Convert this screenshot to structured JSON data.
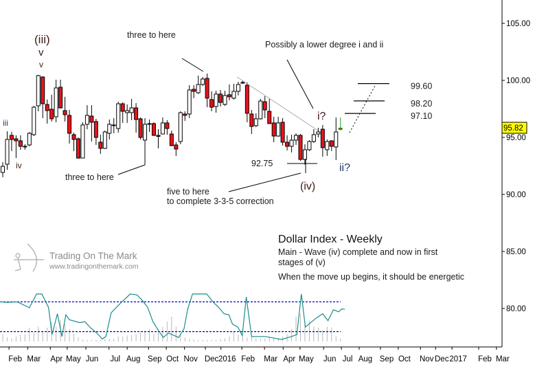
{
  "chart_data": {
    "type": "candlestick",
    "title": "Dollar Index - Weekly",
    "subtitle_lines": [
      "Main - Wave (iv) complete and now in first",
      "stages of (v)",
      "When the move up begins, it should be energetic"
    ],
    "ylim": [
      77,
      107
    ],
    "y_ticks": [
      "105.00",
      "100.00",
      "95.00",
      "90.00",
      "85.00",
      "80.00"
    ],
    "y_tick_values": [
      105,
      100,
      95,
      90,
      85,
      80
    ],
    "x_labels": [
      {
        "label": "Feb",
        "week": 2.8
      },
      {
        "label": "Mar",
        "week": 7.0
      },
      {
        "label": "Apr",
        "week": 12.1
      },
      {
        "label": "May",
        "week": 15.9
      },
      {
        "label": "Jun",
        "week": 20.1
      },
      {
        "label": "Jul",
        "week": 25.3
      },
      {
        "label": "Aug",
        "week": 29.4
      },
      {
        "label": "Sep",
        "week": 34.2
      },
      {
        "label": "Oct",
        "week": 38.2
      },
      {
        "label": "Nov",
        "week": 42.3
      },
      {
        "label": "Dec",
        "week": 47.0
      },
      {
        "label": "2016",
        "week": 50.5
      },
      {
        "label": "Feb",
        "week": 55.2
      },
      {
        "label": "Mar",
        "week": 60.3
      },
      {
        "label": "Apr",
        "week": 64.5
      },
      {
        "label": "May",
        "week": 68.3
      },
      {
        "label": "Jun",
        "week": 73.6
      },
      {
        "label": "Jul",
        "week": 77.6
      },
      {
        "label": "Aug",
        "week": 81.6
      },
      {
        "label": "Sep",
        "week": 86.4
      },
      {
        "label": "Oct",
        "week": 90.4
      },
      {
        "label": "Nov",
        "week": 95.4
      },
      {
        "label": "Dec",
        "week": 98.8
      },
      {
        "label": "2017",
        "week": 102.5
      },
      {
        "label": "Feb",
        "week": 108.5
      },
      {
        "label": "Mar",
        "week": 112.5
      }
    ],
    "ohlc": [
      [
        91.93,
        92.83,
        91.51,
        92.47
      ],
      [
        92.65,
        95.54,
        92.17,
        94.82
      ],
      [
        95.18,
        95.48,
        93.8,
        94.82
      ],
      [
        94.88,
        95.18,
        93.19,
        94.7
      ],
      [
        94.7,
        95.18,
        93.92,
        94.22
      ],
      [
        94.19,
        94.4,
        93.92,
        94.22
      ],
      [
        94.34,
        95.48,
        94.22,
        95.36
      ],
      [
        95.24,
        97.77,
        95.12,
        97.65
      ],
      [
        97.77,
        100.48,
        97.29,
        100.42
      ],
      [
        100.3,
        100.36,
        96.69,
        97.95
      ],
      [
        97.89,
        98.32,
        96.21,
        97.35
      ],
      [
        97.47,
        98.74,
        96.39,
        96.63
      ],
      [
        96.81,
        100.06,
        96.33,
        99.34
      ],
      [
        99.4,
        100.06,
        97.53,
        97.59
      ],
      [
        97.35,
        98.56,
        96.39,
        96.99
      ],
      [
        96.93,
        97.41,
        94.46,
        95.36
      ],
      [
        95.24,
        95.42,
        93.8,
        94.82
      ],
      [
        94.88,
        95.0,
        93.13,
        93.19
      ],
      [
        93.19,
        96.33,
        93.19,
        96.09
      ],
      [
        96.15,
        97.83,
        95.72,
        96.93
      ],
      [
        96.87,
        97.83,
        94.64,
        96.33
      ],
      [
        96.39,
        96.63,
        94.34,
        95.0
      ],
      [
        94.58,
        95.24,
        93.56,
        94.04
      ],
      [
        94.04,
        95.6,
        93.98,
        95.48
      ],
      [
        95.36,
        96.57,
        94.82,
        96.15
      ],
      [
        96.06,
        96.69,
        95.36,
        96.09
      ],
      [
        95.78,
        98.13,
        95.42,
        97.95
      ],
      [
        97.95,
        98.07,
        96.27,
        97.29
      ],
      [
        97.17,
        97.89,
        96.27,
        97.35
      ],
      [
        97.17,
        98.38,
        96.51,
        97.59
      ],
      [
        97.59,
        98.01,
        95.42,
        96.57
      ],
      [
        96.63,
        96.75,
        94.82,
        95.0
      ],
      [
        94.76,
        96.69,
        92.59,
        96.15
      ],
      [
        96.18,
        96.57,
        95.48,
        96.21
      ],
      [
        96.21,
        96.33,
        95.12,
        95.18
      ],
      [
        95.18,
        95.72,
        94.04,
        95.09
      ],
      [
        95.3,
        96.75,
        95.3,
        96.27
      ],
      [
        96.27,
        96.51,
        95.24,
        95.78
      ],
      [
        95.3,
        95.6,
        94.22,
        94.28
      ],
      [
        94.34,
        94.58,
        93.38,
        93.98
      ],
      [
        94.64,
        97.29,
        94.4,
        97.17
      ],
      [
        97.05,
        97.29,
        96.45,
        96.93
      ],
      [
        97.05,
        99.58,
        96.69,
        99.16
      ],
      [
        99.22,
        99.58,
        98.44,
        99.04
      ],
      [
        98.92,
        100.42,
        98.8,
        99.64
      ],
      [
        99.64,
        100.3,
        99.52,
        100.12
      ],
      [
        100.18,
        100.6,
        97.65,
        98.44
      ],
      [
        98.32,
        99.04,
        97.29,
        97.65
      ],
      [
        97.71,
        99.1,
        97.17,
        98.8
      ],
      [
        98.8,
        99.16,
        97.71,
        98.07
      ],
      [
        97.89,
        99.1,
        97.77,
        98.68
      ],
      [
        98.74,
        99.64,
        98.25,
        98.56
      ],
      [
        98.44,
        99.7,
        98.32,
        99.04
      ],
      [
        99.04,
        99.88,
        98.68,
        99.64
      ],
      [
        99.79,
        100.0,
        99.7,
        99.82
      ],
      [
        99.58,
        99.82,
        96.33,
        97.11
      ],
      [
        97.05,
        97.41,
        95.3,
        95.96
      ],
      [
        96.03,
        97.11,
        95.9,
        96.63
      ],
      [
        96.63,
        98.38,
        96.57,
        98.19
      ],
      [
        98.13,
        98.62,
        96.69,
        97.41
      ],
      [
        97.29,
        98.38,
        96.21,
        96.21
      ],
      [
        96.27,
        96.81,
        94.58,
        95.12
      ],
      [
        95.12,
        96.81,
        95.06,
        96.27
      ],
      [
        96.33,
        96.69,
        94.28,
        94.58
      ],
      [
        94.58,
        95.18,
        93.86,
        94.22
      ],
      [
        94.22,
        95.24,
        93.68,
        94.76
      ],
      [
        94.76,
        95.36,
        94.34,
        95.18
      ],
      [
        95.18,
        95.3,
        92.95,
        93.07
      ],
      [
        93.07,
        94.4,
        92.62,
        93.92
      ],
      [
        93.92,
        94.76,
        93.8,
        94.64
      ],
      [
        94.64,
        95.72,
        94.52,
        95.24
      ],
      [
        95.3,
        95.84,
        95.0,
        95.48
      ],
      [
        95.72,
        96.09,
        93.31,
        94.1
      ],
      [
        93.92,
        94.82,
        93.38,
        94.64
      ],
      [
        94.7,
        94.76,
        93.8,
        94.22
      ],
      [
        94.16,
        96.75,
        93.01,
        95.48
      ],
      [
        95.7,
        96.75,
        95.6,
        95.82
      ]
    ],
    "last_price": "95.82",
    "targets": [
      {
        "label": "99.60",
        "value": 99.6
      },
      {
        "label": "98.20",
        "value": 98.2
      },
      {
        "label": "97.10",
        "value": 97.1
      }
    ],
    "low_mark": {
      "label": "92.75",
      "value": 92.75
    },
    "oscillator": {
      "range": [
        0,
        100
      ],
      "upper_band": 80,
      "lower_band": 20,
      "line": [
        [
          -0.6,
          80
        ],
        [
          0.9,
          79
        ],
        [
          3.3,
          80
        ],
        [
          6,
          68
        ],
        [
          7.6,
          96
        ],
        [
          8.8,
          96
        ],
        [
          10.3,
          69
        ],
        [
          11.1,
          14
        ],
        [
          12.3,
          56
        ],
        [
          13.3,
          10
        ],
        [
          14.2,
          54
        ],
        [
          15,
          44
        ],
        [
          17.3,
          38
        ],
        [
          18.5,
          40
        ],
        [
          19.7,
          28
        ],
        [
          21.3,
          16
        ],
        [
          22.4,
          5
        ],
        [
          23.2,
          10
        ],
        [
          24.4,
          58
        ],
        [
          26.7,
          79
        ],
        [
          28.7,
          96
        ],
        [
          30.2,
          94
        ],
        [
          31.4,
          83
        ],
        [
          32.6,
          69
        ],
        [
          33.8,
          40
        ],
        [
          34.9,
          24
        ],
        [
          36.1,
          8
        ],
        [
          37.3,
          17
        ],
        [
          39.6,
          8
        ],
        [
          40.8,
          26
        ],
        [
          41.6,
          65
        ],
        [
          42.7,
          96
        ],
        [
          45.9,
          96
        ],
        [
          47.4,
          79
        ],
        [
          48.6,
          69
        ],
        [
          49.8,
          56
        ],
        [
          50.9,
          54
        ],
        [
          51.7,
          35
        ],
        [
          52.9,
          29
        ],
        [
          53.9,
          12
        ],
        [
          54.8,
          90
        ],
        [
          56,
          10
        ],
        [
          59.1,
          10
        ],
        [
          60.3,
          8
        ],
        [
          62.7,
          4
        ],
        [
          65,
          10
        ],
        [
          66.2,
          14
        ],
        [
          67.2,
          96
        ],
        [
          68.1,
          29
        ],
        [
          69.3,
          38
        ],
        [
          70.5,
          47
        ],
        [
          72,
          56
        ],
        [
          73.2,
          42
        ],
        [
          74.4,
          64
        ],
        [
          75.6,
          60
        ],
        [
          76.3,
          66
        ],
        [
          77,
          65
        ]
      ],
      "histogram": [
        15,
        8,
        6,
        10,
        14,
        14,
        28,
        18,
        30,
        20,
        28,
        40,
        30,
        44,
        35,
        25,
        15,
        8,
        4,
        3,
        3,
        3,
        3,
        5,
        5,
        6,
        10,
        10,
        12,
        13,
        15,
        18,
        20,
        25,
        15,
        22,
        30,
        40,
        50,
        30,
        15,
        8,
        5,
        4,
        3,
        3,
        3,
        3,
        3,
        5,
        6,
        10,
        20,
        14,
        10,
        8,
        12,
        6,
        6,
        6,
        8,
        6,
        6,
        10,
        15,
        25,
        50,
        56,
        40,
        42,
        30,
        28,
        22,
        30,
        28,
        10,
        6
      ]
    },
    "colors": {
      "up": "#ffffff",
      "down": "#e8141b",
      "last": "#1aa31a",
      "osc_line": "#1a8c8c",
      "band": "#0000cc",
      "hist": "#b8b8b8",
      "price_box": "#ffff00"
    }
  },
  "annotations": {
    "wave_iii_paren": "(iii)",
    "wave_v_upper": "v",
    "wave_v_lower": "v",
    "wave_iii": "iii",
    "wave_iv": "iv",
    "three_to_here_top": "three to here",
    "three_to_here_bottom": "three to here",
    "five_to_here_1": "five to here",
    "five_to_here_2": "to complete 3-3-5 correction",
    "possibly": "Possibly a lower degree i and ii",
    "i_q": "i?",
    "ii_q": "ii?",
    "wave_iv_paren": "(iv)"
  },
  "logo": {
    "name": "Trading On The Mark",
    "url": "www.tradingonthemark.com"
  }
}
